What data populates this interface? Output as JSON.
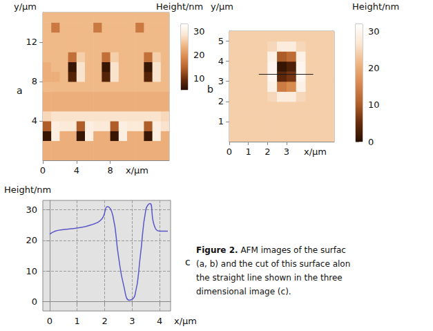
{
  "chart_data": [
    {
      "type": "heatmap",
      "label": "a",
      "x_label": "x/μm",
      "y_label": "y/μm",
      "colorbar_label": "Height/nm",
      "xlim": [
        0,
        15
      ],
      "ylim": [
        0,
        15
      ],
      "xticks": [
        0,
        4,
        8
      ],
      "yticks": [
        4,
        8,
        12
      ],
      "colorbar_lim": [
        5,
        33
      ],
      "colorbar_ticks": [
        10,
        20,
        30
      ],
      "x": [
        0.5,
        1.5,
        2.5,
        3.5,
        4.5,
        5.5,
        6.5,
        7.5,
        8.5,
        9.5,
        10.5,
        11.5,
        12.5,
        13.5,
        14.5
      ],
      "y": [
        0.5,
        1.5,
        2.5,
        3.5,
        4.5,
        5.5,
        6.5,
        7.5,
        8.5,
        9.5,
        10.5,
        11.5,
        12.5,
        13.5,
        14.5
      ],
      "z": [
        [
          23,
          23,
          23,
          23,
          23,
          23,
          23,
          23,
          23,
          23,
          23,
          23,
          23,
          23,
          23
        ],
        [
          23,
          23,
          23,
          23,
          23,
          23,
          23,
          23,
          23,
          23,
          23,
          23,
          23,
          23,
          23
        ],
        [
          6,
          30,
          23,
          23,
          6,
          30,
          23,
          23,
          6,
          30,
          23,
          23,
          6,
          30,
          23
        ],
        [
          14,
          30,
          29,
          29,
          14,
          30,
          29,
          29,
          14,
          30,
          29,
          29,
          14,
          30,
          28
        ],
        [
          27,
          28,
          28,
          28,
          28,
          28,
          28,
          28,
          28,
          28,
          28,
          28,
          28,
          28,
          27
        ],
        [
          23,
          23,
          23,
          23,
          23,
          23,
          23,
          23,
          23,
          23,
          23,
          23,
          23,
          23,
          23
        ],
        [
          23,
          23,
          23,
          23,
          23,
          23,
          23,
          23,
          23,
          23,
          23,
          23,
          23,
          23,
          23
        ],
        [
          24,
          24,
          24,
          24,
          24,
          24,
          24,
          24,
          24,
          24,
          24,
          24,
          24,
          24,
          24
        ],
        [
          23,
          23,
          24,
          8,
          28,
          24,
          24,
          8,
          28,
          24,
          24,
          24,
          8,
          28,
          24
        ],
        [
          23,
          24,
          24,
          6,
          28,
          24,
          24,
          6,
          28,
          24,
          24,
          24,
          6,
          28,
          24
        ],
        [
          24,
          24,
          24,
          16,
          26,
          24,
          24,
          16,
          26,
          24,
          24,
          24,
          16,
          26,
          24
        ],
        [
          24,
          24,
          24,
          24,
          24,
          24,
          24,
          24,
          24,
          24,
          24,
          24,
          24,
          24,
          24
        ],
        [
          24,
          24,
          24,
          24,
          24,
          24,
          24,
          24,
          24,
          24,
          24,
          24,
          24,
          24,
          24
        ],
        [
          24,
          17,
          24,
          24,
          24,
          24,
          17,
          24,
          24,
          24,
          24,
          17,
          24,
          24,
          24
        ],
        [
          24,
          24,
          24,
          24,
          24,
          24,
          24,
          24,
          24,
          24,
          24,
          24,
          24,
          24,
          24
        ]
      ]
    },
    {
      "type": "heatmap",
      "label": "b",
      "x_label": "x/μm",
      "y_label": "y/μm",
      "colorbar_label": "Height/nm",
      "xlim": [
        0,
        5.5
      ],
      "ylim": [
        0,
        5.5
      ],
      "xticks": [
        0,
        1,
        2,
        3
      ],
      "yticks": [
        1,
        2,
        3,
        4,
        5
      ],
      "colorbar_lim": [
        0,
        32
      ],
      "colorbar_ticks": [
        0,
        10,
        20,
        30
      ],
      "x": [
        0.25,
        0.75,
        1.25,
        1.75,
        2.25,
        2.75,
        3.25,
        3.75,
        4.25,
        4.75,
        5.25
      ],
      "y": [
        0.25,
        0.75,
        1.25,
        1.75,
        2.25,
        2.75,
        3.25,
        3.75,
        4.25,
        4.75,
        5.25
      ],
      "z": [
        [
          24,
          24,
          24,
          24,
          24,
          24,
          24,
          24,
          24,
          24,
          24
        ],
        [
          24,
          24,
          24,
          24,
          24,
          24,
          24,
          24,
          24,
          24,
          24
        ],
        [
          24,
          24,
          24,
          24,
          24,
          24,
          24,
          24,
          24,
          24,
          24
        ],
        [
          24,
          24,
          24,
          24,
          24,
          24,
          24,
          24,
          24,
          24,
          24
        ],
        [
          24,
          24,
          24,
          24,
          25,
          28,
          28,
          25,
          24,
          24,
          24
        ],
        [
          24,
          24,
          24,
          24,
          29,
          14,
          16,
          29,
          24,
          24,
          24
        ],
        [
          24,
          24,
          24,
          24,
          30,
          4,
          6,
          30,
          24,
          24,
          24
        ],
        [
          24,
          24,
          24,
          24,
          30,
          1,
          3,
          30,
          24,
          24,
          24
        ],
        [
          24,
          24,
          24,
          24,
          29,
          10,
          12,
          29,
          24,
          24,
          24
        ],
        [
          24,
          24,
          24,
          24,
          25,
          28,
          28,
          25,
          24,
          24,
          24
        ],
        [
          24,
          24,
          24,
          24,
          24,
          24,
          24,
          24,
          24,
          24,
          24
        ]
      ],
      "cut": {
        "x": [
          1.55,
          4.4
        ],
        "y": [
          3.35,
          3.35
        ]
      }
    },
    {
      "type": "line",
      "label": "c",
      "x_label": "x/μm",
      "y_label": "Height/nm",
      "xlim": [
        -0.25,
        4.4
      ],
      "ylim": [
        -3,
        33
      ],
      "xticks": [
        0,
        1,
        2,
        3,
        4
      ],
      "yticks": [
        0,
        10,
        20,
        30
      ],
      "grid": true,
      "color": "#5a55c8",
      "x": [
        0,
        0.2,
        0.5,
        1.0,
        1.5,
        1.9,
        2.1,
        2.3,
        2.5,
        2.7,
        2.9,
        3.1,
        3.3,
        3.5,
        3.65,
        3.8,
        4.0,
        4.3
      ],
      "values": [
        22,
        23,
        23.5,
        24,
        25,
        27,
        31,
        28,
        15,
        5,
        0.5,
        2,
        15,
        30,
        32,
        25,
        23,
        23
      ]
    }
  ],
  "caption": {
    "title": "Figure 2.",
    "lines": [
      "AFM images of the surfac",
      "(a, b) and the cut of this surface alon",
      "the straight line shown in the three",
      "dimensional image (c)."
    ]
  }
}
